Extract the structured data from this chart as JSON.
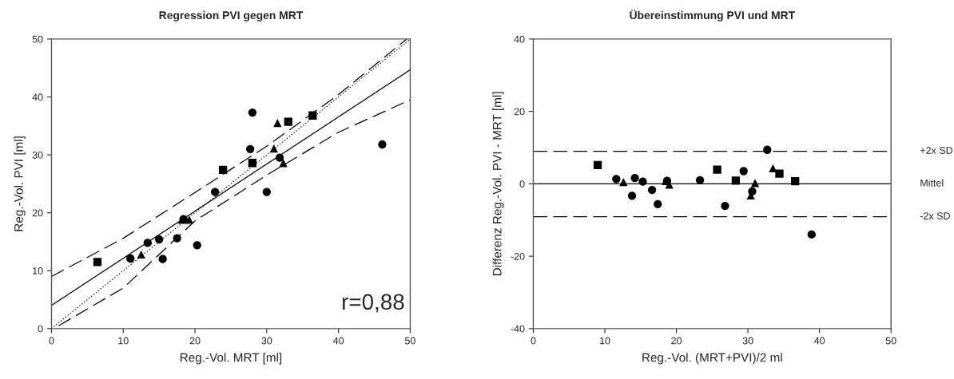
{
  "chart_data": [
    {
      "type": "scatter",
      "title": "Regression PVI gegen MRT",
      "xlabel": "Reg.-Vol. MRT [ml]",
      "ylabel": "Reg.-Vol. PVI [ml]",
      "xlim": [
        0,
        50
      ],
      "ylim": [
        0,
        50
      ],
      "xticks": [
        0,
        10,
        20,
        30,
        40,
        50
      ],
      "yticks": [
        0,
        10,
        20,
        30,
        40,
        50
      ],
      "grid": false,
      "legend": false,
      "annotations": [
        "r=0,88"
      ],
      "series": [
        {
          "marker": "circle",
          "color": "#000000",
          "x": [
            11.0,
            13.4,
            15.0,
            15.5,
            17.5,
            18.4,
            20.3,
            22.8,
            27.7,
            28.0,
            30.0,
            31.8,
            46.1
          ],
          "values": [
            12.1,
            14.8,
            15.4,
            12.0,
            15.6,
            18.9,
            14.4,
            23.6,
            31.0,
            37.3,
            23.6,
            29.5,
            31.8
          ]
        },
        {
          "marker": "square",
          "color": "#000000",
          "x": [
            6.4,
            23.9,
            28.0,
            33.0,
            36.4
          ],
          "values": [
            11.5,
            27.4,
            28.6,
            35.7,
            36.8
          ]
        },
        {
          "marker": "triangle",
          "color": "#000000",
          "x": [
            12.5,
            18.2,
            19.2,
            31.0,
            31.5,
            32.3
          ],
          "values": [
            12.8,
            18.8,
            18.8,
            31.1,
            35.5,
            28.6
          ]
        },
        {
          "type": "line",
          "line_style": "solid",
          "color": "#000000",
          "x": [
            0,
            50
          ],
          "values": [
            4.0,
            44.7
          ]
        },
        {
          "type": "line",
          "line_style": "dotted",
          "color": "#000000",
          "x": [
            0,
            50
          ],
          "values": [
            0,
            50
          ]
        },
        {
          "type": "line",
          "line_style": "dashed",
          "color": "#000000",
          "x": [
            0,
            10,
            20,
            30,
            40,
            49.5
          ],
          "values": [
            9.0,
            15.6,
            23.5,
            31.5,
            40.4,
            50.0
          ]
        },
        {
          "type": "line",
          "line_style": "dashed",
          "color": "#000000",
          "x": [
            1,
            10,
            20,
            30,
            40,
            50
          ],
          "values": [
            0.5,
            7.0,
            18.6,
            26.5,
            33.9,
            39.5
          ]
        }
      ]
    },
    {
      "type": "scatter",
      "title": "Übereinstimmung PVI und MRT",
      "xlabel": "Reg.-Vol. (MRT+PVI)/2 ml",
      "ylabel": "Differenz Reg.-Vol. PVI - MRT [ml]",
      "xlim": [
        0,
        50
      ],
      "ylim": [
        -40,
        40
      ],
      "xticks": [
        0,
        10,
        20,
        30,
        40,
        50
      ],
      "yticks": [
        -40,
        -20,
        0,
        20,
        40
      ],
      "grid": false,
      "legend": false,
      "ref_lines": [
        {
          "axis": "y",
          "value": 9.0,
          "label": "+2x SD",
          "line_style": "dashed",
          "color": "#000000"
        },
        {
          "axis": "y",
          "value": 0,
          "label": "Mittel",
          "line_style": "solid",
          "color": "#000000"
        },
        {
          "axis": "y",
          "value": -9.1,
          "label": "-2x SD",
          "line_style": "dashed",
          "color": "#000000"
        }
      ],
      "series": [
        {
          "marker": "circle",
          "color": "#000000",
          "x": [
            11.6,
            13.8,
            14.2,
            15.3,
            16.6,
            17.4,
            18.7,
            23.3,
            26.8,
            29.4,
            30.6,
            32.7,
            38.9
          ],
          "values": [
            1.3,
            -3.3,
            1.6,
            0.6,
            -1.7,
            -5.6,
            0.8,
            1.0,
            -6.1,
            3.5,
            -2.1,
            9.4,
            -14.0
          ]
        },
        {
          "marker": "square",
          "color": "#000000",
          "x": [
            9.0,
            25.7,
            28.3,
            34.4,
            36.6
          ],
          "values": [
            5.2,
            3.9,
            0.9,
            2.8,
            0.7
          ]
        },
        {
          "marker": "triangle",
          "color": "#000000",
          "x": [
            12.6,
            18.5,
            19.0,
            30.4,
            31.0,
            33.5
          ],
          "values": [
            0.5,
            0.8,
            -0.2,
            -3.2,
            0.2,
            4.3
          ]
        }
      ]
    }
  ]
}
